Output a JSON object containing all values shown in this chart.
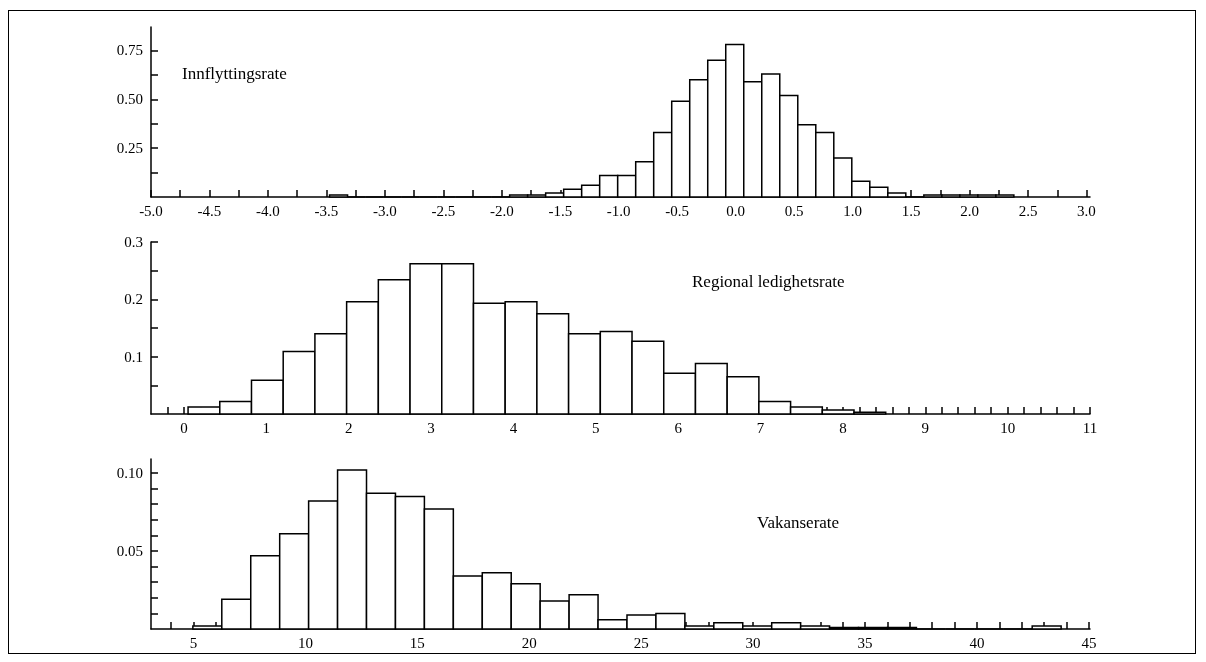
{
  "chart_data": [
    {
      "type": "histogram",
      "color": "#ffffff",
      "annotations": [
        "Innflyttingsrate"
      ],
      "bins": [
        -3.473,
        -3.319,
        -3.165,
        -3.011,
        -2.857,
        -2.703,
        -2.549,
        -2.395,
        -2.241,
        -2.087,
        -1.933,
        -1.779,
        -1.625,
        -1.471,
        -1.317,
        -1.163,
        -1.009,
        -0.855,
        -0.701,
        -0.547,
        -0.393,
        -0.239,
        -0.085,
        0.069,
        0.223,
        0.377,
        0.531,
        0.685,
        0.839,
        0.993,
        1.147,
        1.301,
        1.455,
        1.609,
        1.763,
        1.917,
        2.071,
        2.225,
        2.379
      ],
      "values": [
        0.01,
        0,
        0,
        0,
        0,
        0,
        0,
        0,
        0,
        0,
        0.01,
        0.01,
        0.02,
        0.04,
        0.06,
        0.11,
        0.11,
        0.18,
        0.33,
        0.49,
        0.6,
        0.7,
        0.78,
        0.59,
        0.63,
        0.52,
        0.37,
        0.33,
        0.2,
        0.08,
        0.05,
        0.02,
        0,
        0.01,
        0.01,
        0.01,
        0.01,
        0.01
      ],
      "xlim": [
        -5,
        3.03
      ],
      "ylim": [
        0,
        0.87
      ],
      "xticks": [
        {
          "value": -5,
          "label": "-5.0"
        },
        {
          "value": -4.75,
          "label": null
        },
        {
          "value": -4.5,
          "label": "-4.5"
        },
        {
          "value": -4.25,
          "label": null
        },
        {
          "value": -4,
          "label": "-4.0"
        },
        {
          "value": -3.75,
          "label": null
        },
        {
          "value": -3.5,
          "label": "-3.5"
        },
        {
          "value": -3.25,
          "label": null
        },
        {
          "value": -3,
          "label": "-3.0"
        },
        {
          "value": -2.75,
          "label": null
        },
        {
          "value": -2.5,
          "label": "-2.5"
        },
        {
          "value": -2.25,
          "label": null
        },
        {
          "value": -2,
          "label": "-2.0"
        },
        {
          "value": -1.75,
          "label": null
        },
        {
          "value": -1.5,
          "label": "-1.5"
        },
        {
          "value": -1.25,
          "label": null
        },
        {
          "value": -1,
          "label": "-1.0"
        },
        {
          "value": -0.75,
          "label": null
        },
        {
          "value": -0.5,
          "label": "-0.5"
        },
        {
          "value": -0.25,
          "label": null
        },
        {
          "value": 0,
          "label": "0.0"
        },
        {
          "value": 0.25,
          "label": null
        },
        {
          "value": 0.5,
          "label": "0.5"
        },
        {
          "value": 0.75,
          "label": null
        },
        {
          "value": 1,
          "label": "1.0"
        },
        {
          "value": 1.25,
          "label": null
        },
        {
          "value": 1.5,
          "label": "1.5"
        },
        {
          "value": 1.75,
          "label": null
        },
        {
          "value": 2,
          "label": "2.0"
        },
        {
          "value": 2.25,
          "label": null
        },
        {
          "value": 2.5,
          "label": "2.5"
        },
        {
          "value": 2.75,
          "label": null
        },
        {
          "value": 3,
          "label": "3.0"
        }
      ],
      "yticks": [
        {
          "value": 0.125,
          "label": null
        },
        {
          "value": 0.25,
          "label": "0.25"
        },
        {
          "value": 0.375,
          "label": null
        },
        {
          "value": 0.5,
          "label": "0.50"
        },
        {
          "value": 0.625,
          "label": null
        },
        {
          "value": 0.75,
          "label": "0.75"
        }
      ]
    },
    {
      "type": "histogram",
      "color": "#ffffff",
      "annotations": [
        "Regional ledighetsrate"
      ],
      "bins": [
        0.05,
        0.435,
        0.82,
        1.205,
        1.59,
        1.975,
        2.36,
        2.745,
        3.13,
        3.515,
        3.9,
        4.285,
        4.67,
        5.055,
        5.44,
        5.825,
        6.21,
        6.595,
        6.98,
        7.365,
        7.75,
        8.135,
        8.52
      ],
      "values": [
        0.012,
        0.022,
        0.059,
        0.109,
        0.14,
        0.196,
        0.234,
        0.262,
        0.262,
        0.193,
        0.196,
        0.175,
        0.14,
        0.144,
        0.127,
        0.071,
        0.088,
        0.065,
        0.022,
        0.012,
        0.007,
        0.003
      ],
      "xlim": [
        -0.4,
        11
      ],
      "ylim": [
        0,
        0.3
      ],
      "xticks": [
        {
          "value": -0.2,
          "label": null
        },
        0,
        {
          "value": 0.2,
          "label": null
        },
        {
          "value": 0.4,
          "label": null
        },
        {
          "value": 0.6,
          "label": null
        },
        {
          "value": 0.8,
          "label": null
        },
        1,
        {
          "value": 1.2,
          "label": null
        },
        {
          "value": 1.4,
          "label": null
        },
        {
          "value": 1.6,
          "label": null
        },
        {
          "value": 1.8,
          "label": null
        },
        2,
        {
          "value": 2.2,
          "label": null
        },
        {
          "value": 2.4,
          "label": null
        },
        {
          "value": 2.6,
          "label": null
        },
        {
          "value": 2.8,
          "label": null
        },
        3,
        {
          "value": 3.2,
          "label": null
        },
        {
          "value": 3.4,
          "label": null
        },
        {
          "value": 3.6,
          "label": null
        },
        {
          "value": 3.8,
          "label": null
        },
        4,
        {
          "value": 4.2,
          "label": null
        },
        {
          "value": 4.4,
          "label": null
        },
        {
          "value": 4.6,
          "label": null
        },
        {
          "value": 4.8,
          "label": null
        },
        5,
        {
          "value": 5.2,
          "label": null
        },
        {
          "value": 5.4,
          "label": null
        },
        {
          "value": 5.6,
          "label": null
        },
        {
          "value": 5.8,
          "label": null
        },
        6,
        {
          "value": 6.2,
          "label": null
        },
        {
          "value": 6.4,
          "label": null
        },
        {
          "value": 6.6,
          "label": null
        },
        {
          "value": 6.8,
          "label": null
        },
        7,
        {
          "value": 7.2,
          "label": null
        },
        {
          "value": 7.4,
          "label": null
        },
        {
          "value": 7.6,
          "label": null
        },
        {
          "value": 7.8,
          "label": null
        },
        8,
        {
          "value": 8.2,
          "label": null
        },
        {
          "value": 8.4,
          "label": null
        },
        {
          "value": 8.6,
          "label": null
        },
        {
          "value": 8.8,
          "label": null
        },
        9,
        {
          "value": 9.2,
          "label": null
        },
        {
          "value": 9.4,
          "label": null
        },
        {
          "value": 9.6,
          "label": null
        },
        {
          "value": 9.8,
          "label": null
        },
        10,
        {
          "value": 10.2,
          "label": null
        },
        {
          "value": 10.4,
          "label": null
        },
        {
          "value": 10.6,
          "label": null
        },
        {
          "value": 10.8,
          "label": null
        },
        11
      ],
      "yticks": [
        {
          "value": 0.05,
          "label": null
        },
        0.1,
        {
          "value": 0.15,
          "label": null
        },
        0.2,
        {
          "value": 0.25,
          "label": null
        },
        0.3
      ]
    },
    {
      "type": "histogram",
      "color": "#ffffff",
      "annotations": [
        "Vakanserate"
      ],
      "bins": [
        4.97,
        6.263,
        7.556,
        8.849,
        10.142,
        11.435,
        12.728,
        14.021,
        15.314,
        16.607,
        17.9,
        19.193,
        20.486,
        21.779,
        23.072,
        24.365,
        25.658,
        26.951,
        28.244,
        29.537,
        30.83,
        32.123,
        33.416,
        34.709,
        36.002,
        37.295,
        38.588,
        39.881,
        41.174,
        42.467,
        43.76
      ],
      "values": [
        0.002,
        0.019,
        0.047,
        0.061,
        0.082,
        0.102,
        0.087,
        0.085,
        0.077,
        0.034,
        0.036,
        0.029,
        0.018,
        0.022,
        0.006,
        0.009,
        0.01,
        0.002,
        0.004,
        0.002,
        0.004,
        0.002,
        0.001,
        0.001,
        0.001,
        0,
        0,
        0,
        0,
        0.002
      ],
      "xlim": [
        3.1,
        45.05
      ],
      "ylim": [
        0,
        0.109
      ],
      "xticks": [
        {
          "value": 4,
          "label": null
        },
        5,
        {
          "value": 6,
          "label": null
        },
        {
          "value": 7,
          "label": null
        },
        {
          "value": 8,
          "label": null
        },
        {
          "value": 9,
          "label": null
        },
        10,
        {
          "value": 11,
          "label": null
        },
        {
          "value": 12,
          "label": null
        },
        {
          "value": 13,
          "label": null
        },
        {
          "value": 14,
          "label": null
        },
        15,
        {
          "value": 16,
          "label": null
        },
        {
          "value": 17,
          "label": null
        },
        {
          "value": 18,
          "label": null
        },
        {
          "value": 19,
          "label": null
        },
        20,
        {
          "value": 21,
          "label": null
        },
        {
          "value": 22,
          "label": null
        },
        {
          "value": 23,
          "label": null
        },
        {
          "value": 24,
          "label": null
        },
        25,
        {
          "value": 26,
          "label": null
        },
        {
          "value": 27,
          "label": null
        },
        {
          "value": 28,
          "label": null
        },
        {
          "value": 29,
          "label": null
        },
        30,
        {
          "value": 31,
          "label": null
        },
        {
          "value": 32,
          "label": null
        },
        {
          "value": 33,
          "label": null
        },
        {
          "value": 34,
          "label": null
        },
        35,
        {
          "value": 36,
          "label": null
        },
        {
          "value": 37,
          "label": null
        },
        {
          "value": 38,
          "label": null
        },
        {
          "value": 39,
          "label": null
        },
        40,
        {
          "value": 41,
          "label": null
        },
        {
          "value": 42,
          "label": null
        },
        {
          "value": 43,
          "label": null
        },
        {
          "value": 44,
          "label": null
        },
        45
      ],
      "yticks": [
        {
          "value": 0.01,
          "label": null
        },
        {
          "value": 0.02,
          "label": null
        },
        {
          "value": 0.03,
          "label": null
        },
        {
          "value": 0.04,
          "label": null
        },
        {
          "value": 0.05,
          "label": "0.05"
        },
        {
          "value": 0.06,
          "label": null
        },
        {
          "value": 0.07,
          "label": null
        },
        {
          "value": 0.08,
          "label": null
        },
        {
          "value": 0.09,
          "label": null
        },
        {
          "value": 0.1,
          "label": "0.10"
        }
      ]
    }
  ]
}
